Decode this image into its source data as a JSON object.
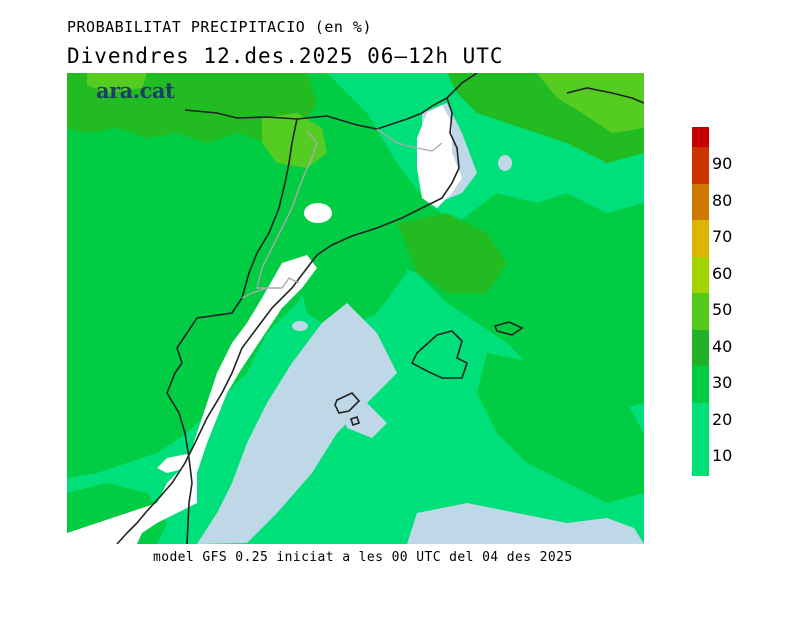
{
  "header": {
    "title": "PROBABILITAT PRECIPITACIO (en %)",
    "subtitle": "Divendres  12.des.2025 06–12h UTC"
  },
  "logo": {
    "text": "ara.cat"
  },
  "footer": {
    "text": "model GFS 0.25 iniciat a les 00 UTC del 04 des 2025"
  },
  "colors": {
    "sea_low": "#bfd8e8",
    "land_low": "#ffffff",
    "p10": "#00e07a",
    "p20": "#00cc44",
    "p30": "#22bb22",
    "p40": "#55cc22",
    "p50": "#99d21a",
    "p60": "#cccc00",
    "p70": "#e6b800",
    "p80": "#cc6600",
    "p90": "#cc2200",
    "p100": "#bb0000",
    "coast": "#222222",
    "border": "#aaaaaa"
  },
  "legend": {
    "labels": [
      "90",
      "80",
      "70",
      "60",
      "50",
      "40",
      "30",
      "20",
      "10"
    ],
    "segments": [
      "#c40000",
      "#cc3300",
      "#cc7a00",
      "#ddb400",
      "#a4d400",
      "#55c81c",
      "#22b22a",
      "#00cc44",
      "#00e07a",
      "#00e07a"
    ]
  }
}
